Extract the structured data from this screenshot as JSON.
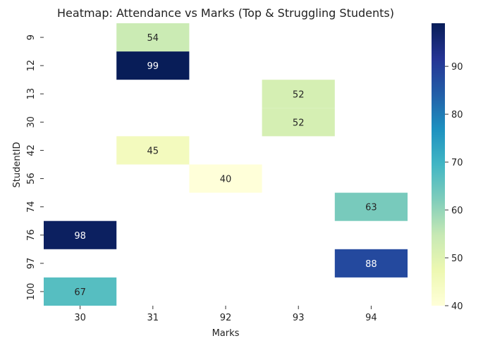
{
  "chart_data": {
    "type": "heatmap",
    "title": "Heatmap: Attendance vs Marks (Top & Struggling Students)",
    "xlabel": "Marks",
    "ylabel": "StudentID",
    "x_categories": [
      "30",
      "31",
      "92",
      "93",
      "94"
    ],
    "y_categories": [
      "9",
      "12",
      "13",
      "30",
      "42",
      "56",
      "74",
      "76",
      "97",
      "100"
    ],
    "cells": [
      {
        "x": "31",
        "y": "9",
        "value": 54
      },
      {
        "x": "31",
        "y": "12",
        "value": 99
      },
      {
        "x": "93",
        "y": "13",
        "value": 52
      },
      {
        "x": "93",
        "y": "30",
        "value": 52
      },
      {
        "x": "31",
        "y": "42",
        "value": 45
      },
      {
        "x": "92",
        "y": "56",
        "value": 40
      },
      {
        "x": "94",
        "y": "74",
        "value": 63
      },
      {
        "x": "30",
        "y": "76",
        "value": 98
      },
      {
        "x": "94",
        "y": "97",
        "value": 88
      },
      {
        "x": "30",
        "y": "100",
        "value": 67
      }
    ],
    "colorbar": {
      "colormap": "YlGnBu",
      "range": [
        40,
        99
      ],
      "ticks": [
        40,
        50,
        60,
        70,
        80,
        90
      ]
    },
    "grid": false,
    "legend": "colorbar-right"
  }
}
